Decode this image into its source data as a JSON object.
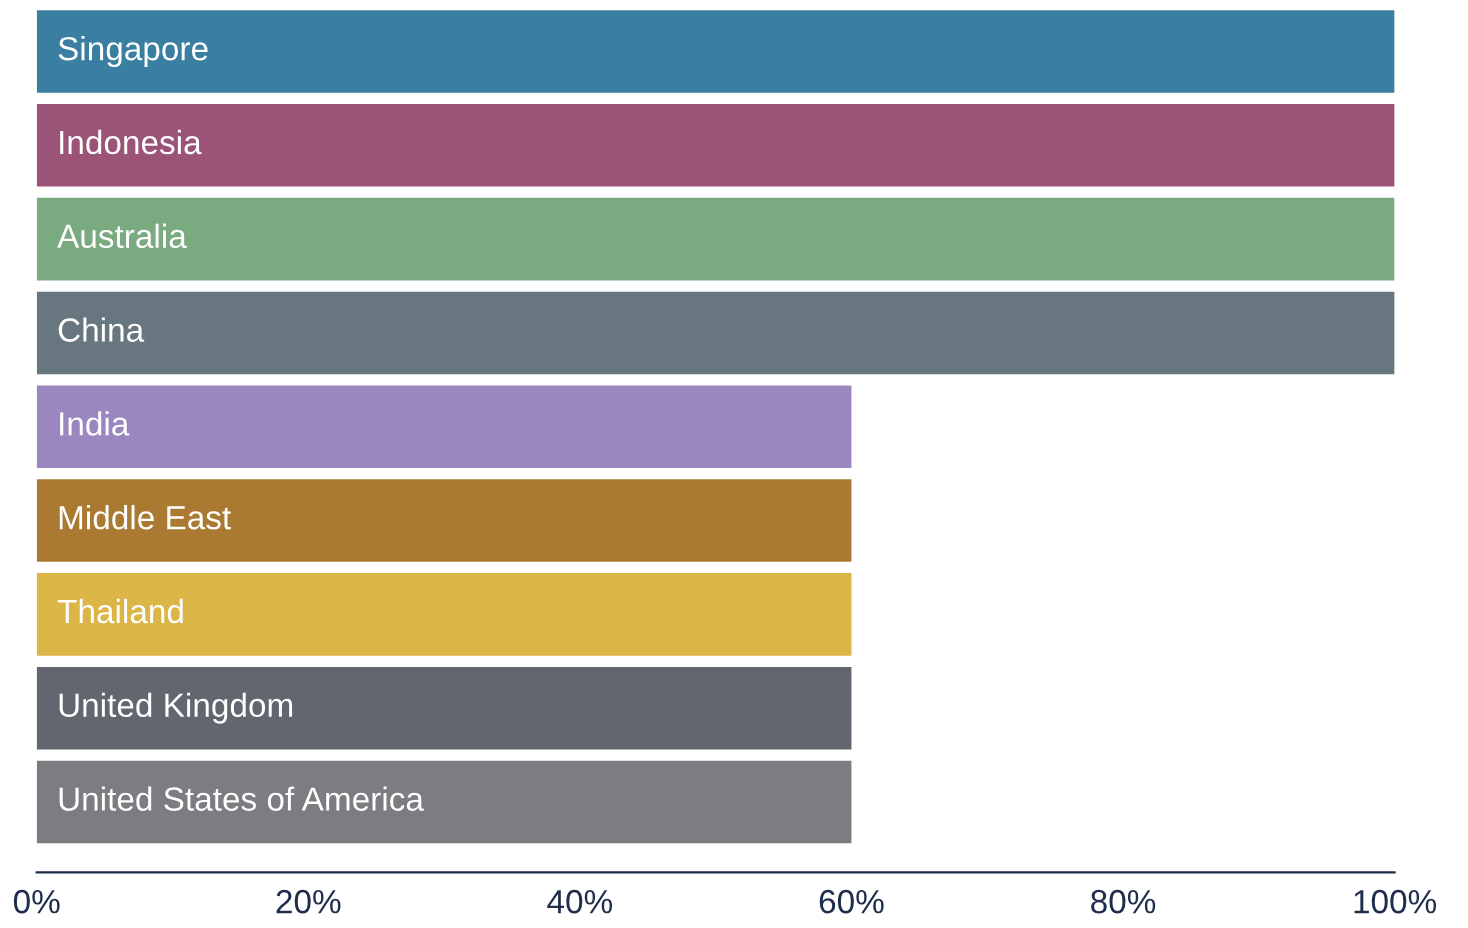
{
  "chart_data": {
    "type": "bar",
    "orientation": "horizontal",
    "categories": [
      "Singapore",
      "Indonesia",
      "Australia",
      "China",
      "India",
      "Middle East",
      "Thailand",
      "United Kingdom",
      "United States of America"
    ],
    "values": [
      100,
      100,
      100,
      100,
      60,
      60,
      60,
      60,
      60
    ],
    "colors": [
      "#3a7ea1",
      "#9b5478",
      "#7aaa80",
      "#68777f",
      "#9b87c0",
      "#aa7a33",
      "#dbb545",
      "#62666f",
      "#7c7d80"
    ],
    "xlim": [
      0,
      100
    ],
    "xticks": [
      {
        "value": 0,
        "label": "0%"
      },
      {
        "value": 20,
        "label": "20%"
      },
      {
        "value": 40,
        "label": "40%"
      },
      {
        "value": 60,
        "label": "60%"
      },
      {
        "value": 80,
        "label": "80%"
      },
      {
        "value": 100,
        "label": "100%"
      }
    ],
    "grid": false,
    "legend": false
  }
}
